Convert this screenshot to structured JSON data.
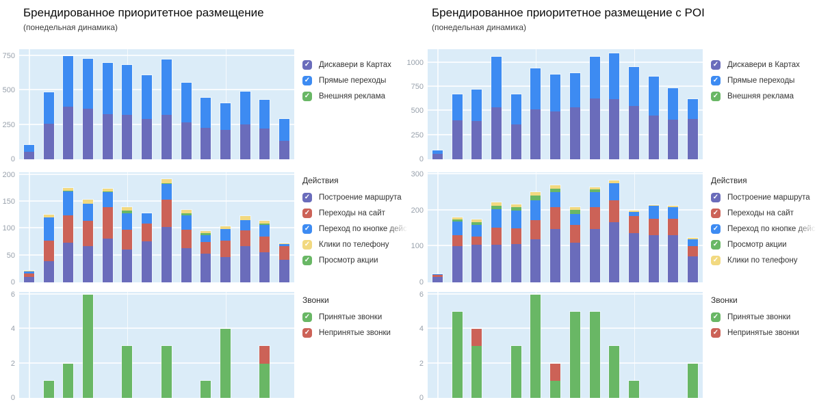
{
  "columns": [
    {
      "title": "Брендированное приоритетное размещение",
      "subtitle": "(понедельная динамика)"
    },
    {
      "title": "Брендированное приоритетное размещение с POI",
      "subtitle": "(понедельная динамика)"
    }
  ],
  "colors": {
    "plot_background": "#dbecf8",
    "gridline": "#ffffff",
    "axis_text": "#97a0ab",
    "discovery_purple": "#6a6cbb",
    "direct_blue": "#3d8bf2",
    "external_green": "#69b765",
    "site_red": "#cc6257",
    "phone_yellow": "#f2d980"
  },
  "chart_data": [
    {
      "type": "bar",
      "stacked": true,
      "column": 0,
      "row": 0,
      "x_count": 14,
      "x_labels_visible": false,
      "yticks": [
        0,
        250,
        500,
        750
      ],
      "ymax": 800,
      "vgrid_slots": [
        0,
        5,
        10
      ],
      "series": [
        {
          "name": "Дискавери в Картах",
          "color": "#6a6cbb",
          "values": [
            55,
            260,
            385,
            370,
            330,
            325,
            295,
            325,
            270,
            230,
            215,
            255,
            225,
            135
          ]
        },
        {
          "name": "Прямые переходы",
          "color": "#3d8bf2",
          "values": [
            50,
            225,
            365,
            360,
            370,
            360,
            315,
            400,
            285,
            215,
            195,
            235,
            205,
            160
          ]
        },
        {
          "name": "Внешняя реклама",
          "color": "#69b765",
          "values": [
            0,
            0,
            0,
            0,
            0,
            0,
            0,
            0,
            0,
            0,
            0,
            0,
            0,
            0
          ]
        }
      ],
      "legend": {
        "title": "",
        "items": [
          {
            "label": "Дискавери в Картах",
            "color": "#6a6cbb"
          },
          {
            "label": "Прямые переходы",
            "color": "#3d8bf2"
          },
          {
            "label": "Внешняя реклама",
            "color": "#69b765"
          }
        ]
      }
    },
    {
      "type": "bar",
      "stacked": true,
      "column": 0,
      "row": 1,
      "x_count": 14,
      "x_labels_visible": false,
      "yticks": [
        0,
        50,
        100,
        150,
        200
      ],
      "ymax": 205,
      "vgrid_slots": [
        0,
        5,
        10
      ],
      "series": [
        {
          "name": "Построение маршрута",
          "color": "#6a6cbb",
          "values": [
            10,
            39,
            74,
            67,
            81,
            61,
            76,
            103,
            64,
            54,
            47,
            68,
            56,
            42
          ]
        },
        {
          "name": "Переходы на сайт",
          "color": "#cc6257",
          "values": [
            7,
            39,
            51,
            47,
            59,
            37,
            33,
            51,
            34,
            21,
            31,
            29,
            29,
            25
          ]
        },
        {
          "name": "Переход по кнопке действия",
          "color": "#3d8bf2",
          "values": [
            3,
            43,
            44,
            33,
            28,
            31,
            19,
            29,
            27,
            13,
            21,
            19,
            22,
            4
          ]
        },
        {
          "name": "Просмотр акции",
          "color": "#69b765",
          "values": [
            0,
            0,
            2,
            0,
            2,
            5,
            0,
            2,
            3,
            4,
            0,
            0,
            2,
            0
          ]
        },
        {
          "name": "Клики по телефону",
          "color": "#f2d980",
          "values": [
            2,
            5,
            5,
            7,
            4,
            6,
            0,
            7,
            7,
            4,
            5,
            7,
            5,
            2
          ]
        }
      ],
      "legend": {
        "title": "Действия",
        "items": [
          {
            "label": "Построение маршрута",
            "color": "#6a6cbb"
          },
          {
            "label": "Переходы на сайт",
            "color": "#cc6257"
          },
          {
            "label": "Переход по кнопке действия",
            "color": "#3d8bf2",
            "fade": true
          },
          {
            "label": "Клики по телефону",
            "color": "#f2d980"
          },
          {
            "label": "Просмотр акции",
            "color": "#69b765"
          }
        ]
      }
    },
    {
      "type": "bar",
      "stacked": true,
      "column": 0,
      "row": 2,
      "x_count": 14,
      "x_labels_visible": false,
      "yticks": [
        0,
        2,
        4,
        6
      ],
      "ymax": 6.15,
      "vgrid_slots": [
        0,
        5,
        10
      ],
      "series": [
        {
          "name": "Принятые звонки",
          "color": "#69b765",
          "values": [
            0,
            1,
            2,
            6,
            0,
            3,
            0,
            3,
            0,
            1,
            4,
            0,
            2,
            0
          ]
        },
        {
          "name": "Непринятые звонки",
          "color": "#cc6257",
          "values": [
            0,
            0,
            0,
            0,
            0,
            0,
            0,
            0,
            0,
            0,
            0,
            0,
            1,
            0
          ]
        }
      ],
      "legend": {
        "title": "Звонки",
        "items": [
          {
            "label": "Принятые звонки",
            "color": "#69b765"
          },
          {
            "label": "Непринятые звонки",
            "color": "#cc6257"
          }
        ]
      }
    },
    {
      "type": "bar",
      "stacked": true,
      "column": 1,
      "row": 0,
      "x_count": 14,
      "x_labels_visible": false,
      "yticks": [
        0,
        250,
        500,
        750,
        1000
      ],
      "ymax": 1140,
      "vgrid_slots": [
        0,
        5,
        10
      ],
      "series": [
        {
          "name": "Дискавери в Картах",
          "color": "#6a6cbb",
          "values": [
            55,
            405,
            395,
            540,
            360,
            520,
            495,
            535,
            630,
            625,
            555,
            455,
            410,
            420
          ]
        },
        {
          "name": "Прямые переходы",
          "color": "#3d8bf2",
          "values": [
            35,
            270,
            330,
            525,
            315,
            425,
            380,
            360,
            430,
            470,
            400,
            405,
            330,
            205
          ]
        },
        {
          "name": "Внешняя реклама",
          "color": "#69b765",
          "values": [
            0,
            0,
            0,
            0,
            0,
            0,
            0,
            0,
            0,
            0,
            0,
            0,
            0,
            0
          ]
        }
      ],
      "legend": {
        "title": "",
        "items": [
          {
            "label": "Дискавери в Картах",
            "color": "#6a6cbb"
          },
          {
            "label": "Прямые переходы",
            "color": "#3d8bf2"
          },
          {
            "label": "Внешняя реклама",
            "color": "#69b765"
          }
        ]
      }
    },
    {
      "type": "bar",
      "stacked": true,
      "column": 1,
      "row": 1,
      "x_count": 14,
      "x_labels_visible": false,
      "yticks": [
        0,
        100,
        200,
        300
      ],
      "ymax": 306,
      "vgrid_slots": [
        0,
        5,
        10
      ],
      "series": [
        {
          "name": "Построение маршрута",
          "color": "#6a6cbb",
          "values": [
            15,
            100,
            104,
            104,
            106,
            119,
            148,
            111,
            149,
            167,
            137,
            132,
            132,
            72
          ]
        },
        {
          "name": "Переходы на сайт",
          "color": "#cc6257",
          "values": [
            5,
            32,
            24,
            49,
            45,
            54,
            61,
            49,
            60,
            62,
            48,
            45,
            45,
            28
          ]
        },
        {
          "name": "Переход по кнопке действия",
          "color": "#3d8bf2",
          "values": [
            3,
            38,
            32,
            51,
            49,
            56,
            41,
            31,
            41,
            46,
            11,
            35,
            32,
            20
          ]
        },
        {
          "name": "Просмотр акции",
          "color": "#69b765",
          "values": [
            0,
            5,
            8,
            9,
            9,
            12,
            11,
            11,
            9,
            0,
            0,
            0,
            0,
            0
          ]
        },
        {
          "name": "Клики по телефону",
          "color": "#f2d980",
          "values": [
            0,
            5,
            7,
            9,
            7,
            9,
            9,
            8,
            6,
            9,
            4,
            3,
            4,
            4
          ]
        }
      ],
      "legend": {
        "title": "Действия",
        "items": [
          {
            "label": "Построение маршрута",
            "color": "#6a6cbb"
          },
          {
            "label": "Переходы на сайт",
            "color": "#cc6257"
          },
          {
            "label": "Переход по кнопке действия",
            "color": "#3d8bf2",
            "fade": true
          },
          {
            "label": "Просмотр акции",
            "color": "#69b765"
          },
          {
            "label": "Клики по телефону",
            "color": "#f2d980"
          }
        ]
      }
    },
    {
      "type": "bar",
      "stacked": true,
      "column": 1,
      "row": 2,
      "x_count": 14,
      "x_labels_visible": false,
      "yticks": [
        0,
        2,
        4,
        6
      ],
      "ymax": 6.15,
      "vgrid_slots": [
        0,
        5,
        10
      ],
      "series": [
        {
          "name": "Принятые звонки",
          "color": "#69b765",
          "values": [
            0,
            5,
            3,
            0,
            3,
            6,
            1,
            5,
            5,
            3,
            1,
            0,
            0,
            2
          ]
        },
        {
          "name": "Непринятые звонки",
          "color": "#cc6257",
          "values": [
            0,
            0,
            1,
            0,
            0,
            0,
            1,
            0,
            0,
            0,
            0,
            0,
            0,
            0
          ]
        }
      ],
      "legend": {
        "title": "Звонки",
        "items": [
          {
            "label": "Принятые звонки",
            "color": "#69b765"
          },
          {
            "label": "Непринятые звонки",
            "color": "#cc6257"
          }
        ]
      }
    }
  ]
}
